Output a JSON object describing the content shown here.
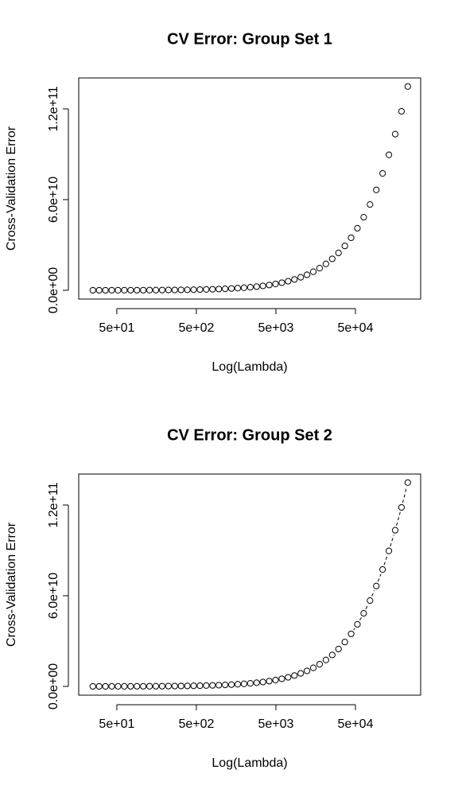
{
  "chart_data": [
    {
      "type": "scatter",
      "title": "CV Error: Group Set 1",
      "x_label": "Log(Lambda)",
      "y_label": "Cross-Validation Error",
      "log_x": true,
      "color": "#000000",
      "connect": false,
      "xlim": [
        16.6,
        330000
      ],
      "ylim": [
        -5800000000.0,
        140500000000.0
      ],
      "xticks": [
        {
          "value": 50,
          "label": "5e+01"
        },
        {
          "value": 500,
          "label": "5e+02"
        },
        {
          "value": 5000,
          "label": "5e+03"
        },
        {
          "value": 50000,
          "label": "5e+04"
        }
      ],
      "yticks": [
        {
          "value": 0,
          "label": "0.0e+00"
        },
        {
          "value": 60000000000.0,
          "label": "6.0e+10"
        },
        {
          "value": 120000000000.0,
          "label": "1.2e+11"
        }
      ],
      "x": [
        25,
        30,
        36,
        43.2,
        51.8,
        62.2,
        74.6,
        89.6,
        107.5,
        129,
        154.8,
        185.8,
        222.9,
        267.5,
        321,
        385.2,
        462.2,
        554.7,
        665.6,
        798.7,
        958.4,
        1150,
        1380,
        1656,
        1987,
        2385,
        2862,
        3434,
        4121,
        4945,
        5934,
        7121,
        8546,
        10255,
        12306,
        14767,
        17720,
        21264,
        25518,
        30620,
        36745,
        44093,
        52910,
        63493,
        76193,
        91433,
        109718,
        131663,
        157995,
        189593,
        227510
      ],
      "values": [
        21400000.0,
        25700000.0,
        30800000.0,
        37000000.0,
        44300000.0,
        53200000.0,
        63900000.0,
        76700000.0,
        92000000.0,
        110000000.0,
        133000000.0,
        159000000.0,
        191000000.0,
        229000000.0,
        275000000.0,
        330000000.0,
        396000000.0,
        475000000.0,
        570000000.0,
        684000000.0,
        820000000.0,
        984000000.0,
        1180000000.0,
        1420000000.0,
        1700000000.0,
        2030000000.0,
        2440000000.0,
        2920000000.0,
        3500000000.0,
        4190000000.0,
        5020000000.0,
        6010000000.0,
        7200000000.0,
        8610000000.0,
        10280000000.0,
        12290000000.0,
        14660000000.0,
        17480000000.0,
        20810000000.0,
        24730000000.0,
        29350000000.0,
        34750000000.0,
        41050000000.0,
        48350000000.0,
        56770000000.0,
        66410000000.0,
        77340000000.0,
        89640000000.0,
        103350000000.0,
        118430000000.0,
        134830000000.0
      ]
    },
    {
      "type": "scatter",
      "title": "CV Error: Group Set 2",
      "x_label": "Log(Lambda)",
      "y_label": "Cross-Validation Error",
      "log_x": true,
      "color": "#000000",
      "connect": true,
      "xlim": [
        16.6,
        330000
      ],
      "ylim": [
        -5800000000.0,
        140500000000.0
      ],
      "xticks": [
        {
          "value": 50,
          "label": "5e+01"
        },
        {
          "value": 500,
          "label": "5e+02"
        },
        {
          "value": 5000,
          "label": "5e+03"
        },
        {
          "value": 50000,
          "label": "5e+04"
        }
      ],
      "yticks": [
        {
          "value": 0,
          "label": "0.0e+00"
        },
        {
          "value": 60000000000.0,
          "label": "6.0e+10"
        },
        {
          "value": 120000000000.0,
          "label": "1.2e+11"
        }
      ],
      "x": [
        25,
        30,
        36,
        43.2,
        51.8,
        62.2,
        74.6,
        89.6,
        107.5,
        129,
        154.8,
        185.8,
        222.9,
        267.5,
        321,
        385.2,
        462.2,
        554.7,
        665.6,
        798.7,
        958.4,
        1150,
        1380,
        1656,
        1987,
        2385,
        2862,
        3434,
        4121,
        4945,
        5934,
        7121,
        8546,
        10255,
        12306,
        14767,
        17720,
        21264,
        25518,
        30620,
        36745,
        44093,
        52910,
        63493,
        76193,
        91433,
        109718,
        131663,
        157995,
        189593,
        227510
      ],
      "values": [
        21400000.0,
        25700000.0,
        30800000.0,
        37000000.0,
        44300000.0,
        53200000.0,
        63900000.0,
        76700000.0,
        92000000.0,
        110000000.0,
        133000000.0,
        159000000.0,
        191000000.0,
        229000000.0,
        275000000.0,
        330000000.0,
        396000000.0,
        475000000.0,
        570000000.0,
        684000000.0,
        820000000.0,
        984000000.0,
        1180000000.0,
        1420000000.0,
        1700000000.0,
        2030000000.0,
        2440000000.0,
        2920000000.0,
        3500000000.0,
        4190000000.0,
        5020000000.0,
        6010000000.0,
        7200000000.0,
        8610000000.0,
        10280000000.0,
        12290000000.0,
        14660000000.0,
        17480000000.0,
        20810000000.0,
        24730000000.0,
        29350000000.0,
        34750000000.0,
        41050000000.0,
        48350000000.0,
        56770000000.0,
        66410000000.0,
        77340000000.0,
        89640000000.0,
        103350000000.0,
        118430000000.0,
        134830000000.0
      ]
    }
  ]
}
